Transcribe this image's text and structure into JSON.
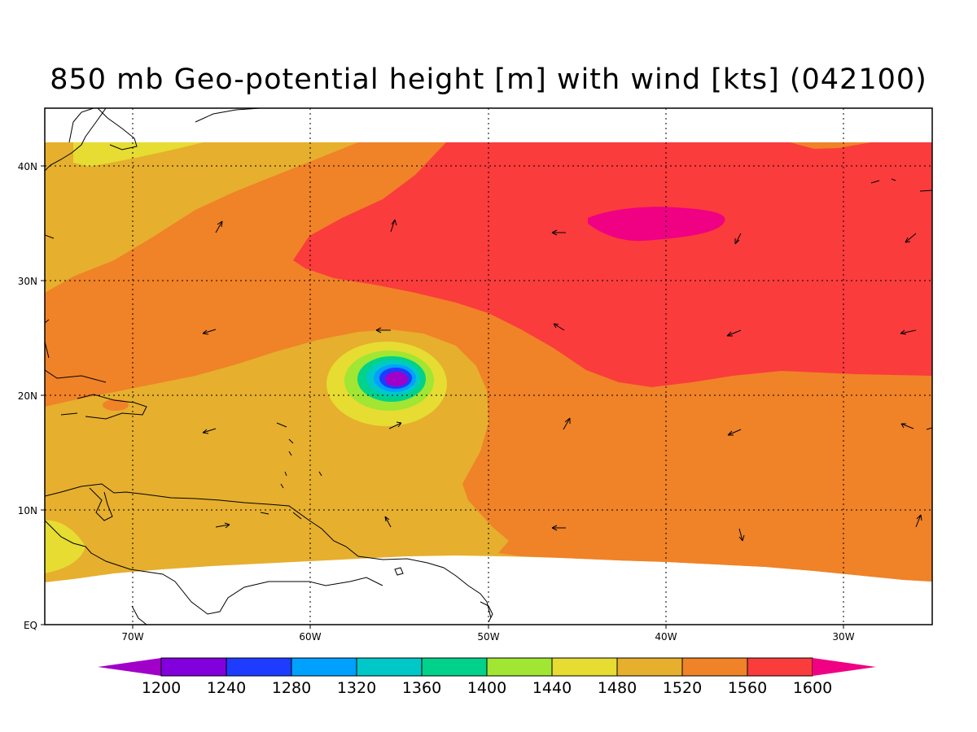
{
  "title": "850 mb Geo-potential height [m] with wind [kts] (042100)",
  "lat_labels": [
    "40N",
    "30N",
    "20N",
    "10N",
    "EQ"
  ],
  "lon_labels": [
    "70W",
    "60W",
    "50W",
    "40W",
    "30W"
  ],
  "colorbar": {
    "levels": [
      "1200",
      "1240",
      "1280",
      "1320",
      "1360",
      "1400",
      "1440",
      "1480",
      "1520",
      "1560",
      "1600"
    ],
    "colors": [
      "#a000c8",
      "#8200dc",
      "#1e3cff",
      "#00a0ff",
      "#00c8c8",
      "#00d28c",
      "#a0e632",
      "#e6dc32",
      "#e6af2d",
      "#f08228",
      "#fa3c3c",
      "#f00082"
    ]
  },
  "field_colors": {
    "land_outline": "#000000",
    "missing": "#ffffff"
  }
}
